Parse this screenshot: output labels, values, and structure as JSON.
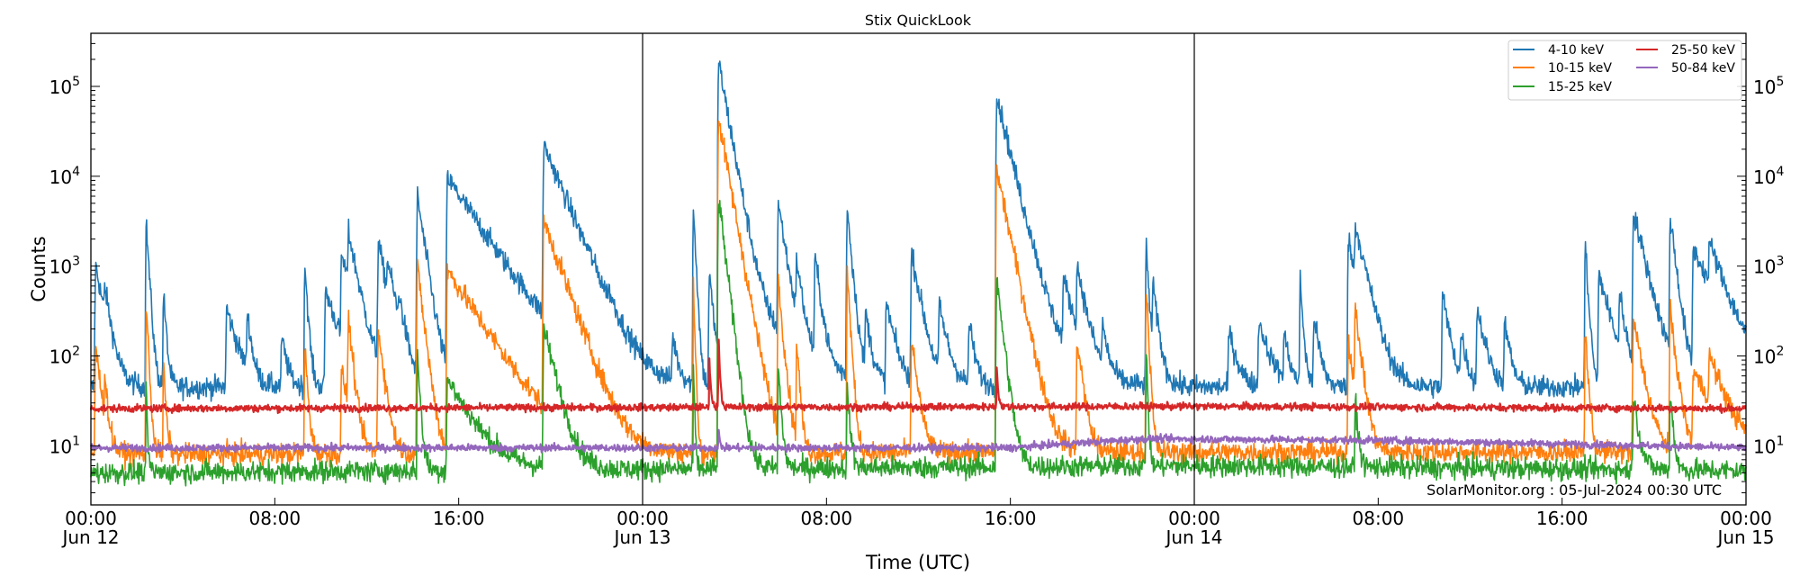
{
  "chart_data": {
    "type": "line",
    "title": "Stix QuickLook",
    "xlabel": "Time (UTC)",
    "ylabel": "Counts",
    "yscale": "log",
    "ylim": [
      2.2,
      390000
    ],
    "xlim": [
      "Jun 12 00:00",
      "Jun 15 00:00"
    ],
    "grid": false,
    "legend_position": "top-right",
    "annotation": "SolarMonitor.org : 05-Jul-2024 00:30 UTC",
    "x_ticks": [
      {
        "time": "00:00",
        "date": "Jun 12"
      },
      {
        "time": "08:00",
        "date": ""
      },
      {
        "time": "16:00",
        "date": ""
      },
      {
        "time": "00:00",
        "date": "Jun 13"
      },
      {
        "time": "08:00",
        "date": ""
      },
      {
        "time": "16:00",
        "date": ""
      },
      {
        "time": "00:00",
        "date": "Jun 14"
      },
      {
        "time": "08:00",
        "date": ""
      },
      {
        "time": "16:00",
        "date": ""
      },
      {
        "time": "00:00",
        "date": "Jun 15"
      }
    ],
    "day_boundaries": [
      "Jun 13 00:00",
      "Jun 14 00:00"
    ],
    "y_ticks": [
      {
        "base": "10",
        "exp": "1",
        "value": 10
      },
      {
        "base": "10",
        "exp": "2",
        "value": 100
      },
      {
        "base": "10",
        "exp": "3",
        "value": 1000
      },
      {
        "base": "10",
        "exp": "4",
        "value": 10000
      },
      {
        "base": "10",
        "exp": "5",
        "value": 100000
      }
    ],
    "series": [
      {
        "name": "4-10 keV",
        "color": "#1f77b4",
        "baseline": [
          [
            "Jun 12 00:00",
            45
          ],
          [
            "Jun 15 00:00",
            45
          ]
        ],
        "flares": [
          [
            "Jun 12 00:12",
            1000,
            0.3
          ],
          [
            "Jun 12 00:36",
            300,
            0.2
          ],
          [
            "Jun 12 02:24",
            3200,
            0.1
          ],
          [
            "Jun 12 03:09",
            500,
            0.1
          ],
          [
            "Jun 12 05:54",
            300,
            0.4
          ],
          [
            "Jun 12 06:48",
            250,
            0.15
          ],
          [
            "Jun 12 08:18",
            120,
            0.2
          ],
          [
            "Jun 12 09:18",
            1100,
            0.1
          ],
          [
            "Jun 12 10:12",
            500,
            0.5
          ],
          [
            "Jun 12 10:54",
            1200,
            0.4
          ],
          [
            "Jun 12 11:12",
            1800,
            0.3
          ],
          [
            "Jun 12 12:30",
            1800,
            0.3
          ],
          [
            "Jun 12 12:54",
            700,
            0.3
          ],
          [
            "Jun 12 13:24",
            250,
            0.2
          ],
          [
            "Jun 12 14:12",
            6000,
            0.25
          ],
          [
            "Jun 12 15:30",
            9500,
            1.15
          ],
          [
            "Jun 12 19:42",
            22000,
            0.7
          ],
          [
            "Jun 12 21:36",
            150,
            0.15
          ],
          [
            "Jun 12 22:30",
            120,
            0.2
          ],
          [
            "Jun 13 01:18",
            120,
            0.2
          ],
          [
            "Jun 13 02:12",
            5500,
            0.08
          ],
          [
            "Jun 13 02:54",
            800,
            0.15
          ],
          [
            "Jun 13 03:18",
            190000,
            0.3
          ],
          [
            "Jun 13 03:30",
            600,
            1.5
          ],
          [
            "Jun 13 05:54",
            5000,
            0.25
          ],
          [
            "Jun 13 06:42",
            900,
            0.2
          ],
          [
            "Jun 13 07:30",
            1200,
            0.2
          ],
          [
            "Jun 13 08:54",
            4500,
            0.15
          ],
          [
            "Jun 13 09:42",
            250,
            0.2
          ],
          [
            "Jun 13 10:36",
            350,
            0.3
          ],
          [
            "Jun 13 11:42",
            1400,
            0.3
          ],
          [
            "Jun 13 12:54",
            300,
            0.3
          ],
          [
            "Jun 13 14:12",
            200,
            0.2
          ],
          [
            "Jun 13 15:24",
            80000,
            0.4
          ],
          [
            "Jun 13 15:40",
            400,
            1.2
          ],
          [
            "Jun 13 16:48",
            250,
            0.3
          ],
          [
            "Jun 13 18:18",
            600,
            0.4
          ],
          [
            "Jun 13 18:54",
            800,
            0.3
          ],
          [
            "Jun 13 20:00",
            150,
            0.2
          ],
          [
            "Jun 13 21:54",
            1700,
            0.1
          ],
          [
            "Jun 13 22:12",
            500,
            0.2
          ],
          [
            "Jun 14 01:30",
            150,
            0.3
          ],
          [
            "Jun 14 02:48",
            200,
            0.4
          ],
          [
            "Jun 14 03:54",
            130,
            0.2
          ],
          [
            "Jun 14 04:36",
            700,
            0.1
          ],
          [
            "Jun 14 05:12",
            250,
            0.2
          ],
          [
            "Jun 14 06:42",
            2000,
            0.3
          ],
          [
            "Jun 14 07:00",
            2200,
            0.4
          ],
          [
            "Jun 14 10:48",
            450,
            0.25
          ],
          [
            "Jun 14 11:36",
            130,
            0.2
          ],
          [
            "Jun 14 12:18",
            300,
            0.3
          ],
          [
            "Jun 14 13:30",
            200,
            0.2
          ],
          [
            "Jun 14 17:00",
            1800,
            0.1
          ],
          [
            "Jun 14 17:36",
            800,
            0.4
          ],
          [
            "Jun 14 18:30",
            400,
            0.2
          ],
          [
            "Jun 14 19:06",
            4000,
            0.4
          ],
          [
            "Jun 14 20:42",
            3500,
            0.2
          ],
          [
            "Jun 14 21:42",
            1500,
            0.8
          ],
          [
            "Jun 14 22:24",
            1200,
            0.5
          ]
        ]
      },
      {
        "name": "10-15 keV",
        "color": "#ff7f0e",
        "baseline": [
          [
            "Jun 12 00:00",
            8
          ],
          [
            "Jun 14 00:00",
            8.5
          ],
          [
            "Jun 15 00:00",
            8.5
          ]
        ],
        "flares": [
          [
            "Jun 12 00:12",
            120,
            0.2
          ],
          [
            "Jun 12 00:36",
            40,
            0.1
          ],
          [
            "Jun 12 02:24",
            400,
            0.08
          ],
          [
            "Jun 12 03:09",
            80,
            0.08
          ],
          [
            "Jun 12 09:18",
            130,
            0.1
          ],
          [
            "Jun 12 10:54",
            60,
            0.3
          ],
          [
            "Jun 12 11:12",
            250,
            0.15
          ],
          [
            "Jun 12 12:30",
            200,
            0.2
          ],
          [
            "Jun 12 14:12",
            1000,
            0.2
          ],
          [
            "Jun 12 15:30",
            900,
            1.1
          ],
          [
            "Jun 12 19:42",
            3200,
            0.6
          ],
          [
            "Jun 13 02:12",
            800,
            0.05
          ],
          [
            "Jun 13 03:18",
            45000,
            0.3
          ],
          [
            "Jun 13 05:54",
            700,
            0.15
          ],
          [
            "Jun 13 06:42",
            150,
            0.1
          ],
          [
            "Jun 13 08:54",
            900,
            0.1
          ],
          [
            "Jun 13 11:42",
            150,
            0.2
          ],
          [
            "Jun 13 15:24",
            12000,
            0.35
          ],
          [
            "Jun 13 18:54",
            150,
            0.2
          ],
          [
            "Jun 13 21:54",
            700,
            0.08
          ],
          [
            "Jun 14 06:42",
            150,
            0.2
          ],
          [
            "Jun 14 07:00",
            300,
            0.2
          ],
          [
            "Jun 14 17:00",
            200,
            0.1
          ],
          [
            "Jun 14 19:06",
            250,
            0.3
          ],
          [
            "Jun 14 20:42",
            300,
            0.2
          ],
          [
            "Jun 14 21:42",
            60,
            0.8
          ],
          [
            "Jun 14 22:24",
            70,
            0.5
          ]
        ]
      },
      {
        "name": "15-25 keV",
        "color": "#2ca02c",
        "baseline": [
          [
            "Jun 12 00:00",
            5
          ],
          [
            "Jun 14 00:00",
            6
          ],
          [
            "Jun 15 00:00",
            5.3
          ]
        ],
        "flares": [
          [
            "Jun 12 02:24",
            35,
            0.05
          ],
          [
            "Jun 12 14:12",
            100,
            0.1
          ],
          [
            "Jun 12 15:30",
            50,
            0.9
          ],
          [
            "Jun 12 19:42",
            200,
            0.4
          ],
          [
            "Jun 13 02:12",
            100,
            0.04
          ],
          [
            "Jun 13 03:18",
            6000,
            0.2
          ],
          [
            "Jun 13 05:54",
            70,
            0.1
          ],
          [
            "Jun 13 08:54",
            40,
            0.1
          ],
          [
            "Jun 13 15:24",
            700,
            0.2
          ],
          [
            "Jun 13 21:54",
            150,
            0.05
          ],
          [
            "Jun 14 07:00",
            30,
            0.1
          ],
          [
            "Jun 14 19:06",
            30,
            0.2
          ],
          [
            "Jun 14 20:42",
            40,
            0.1
          ]
        ]
      },
      {
        "name": "25-50 keV",
        "color": "#d62728",
        "baseline": [
          [
            "Jun 12 00:00",
            26
          ],
          [
            "Jun 14 00:00",
            27.5
          ],
          [
            "Jun 15 00:00",
            26
          ]
        ],
        "flares": [
          [
            "Jun 13 02:54",
            80,
            0.05
          ],
          [
            "Jun 13 03:18",
            160,
            0.05
          ],
          [
            "Jun 13 15:24",
            60,
            0.05
          ]
        ]
      },
      {
        "name": "50-84 keV",
        "color": "#9467bd",
        "baseline": [
          [
            "Jun 12 00:00",
            9.5
          ],
          [
            "Jun 13 16:00",
            9.5
          ],
          [
            "Jun 13 22:00",
            12
          ],
          [
            "Jun 14 08:00",
            11.5
          ],
          [
            "Jun 15 00:00",
            9.5
          ]
        ],
        "flares": [
          [
            "Jun 13 03:18",
            6,
            0.05
          ]
        ]
      }
    ]
  }
}
